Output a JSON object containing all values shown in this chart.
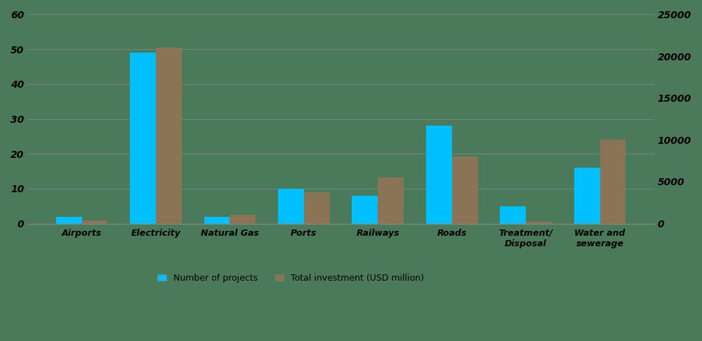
{
  "categories": [
    "Airports",
    "Electricity",
    "Natural Gas",
    "Ports",
    "Railways",
    "Roads",
    "Treatment/\nDisposal",
    "Water and\nsewerage"
  ],
  "num_projects": [
    2,
    49,
    2,
    10,
    8,
    28,
    5,
    16
  ],
  "total_investment": [
    400,
    21000,
    1100,
    3700,
    5500,
    8000,
    200,
    10000
  ],
  "bar_color_projects": "#00BFFF",
  "bar_color_investment": "#8B7355",
  "background_color": "#4A7A5A",
  "tick_color": "black",
  "left_ylim": [
    0,
    60
  ],
  "right_ylim": [
    0,
    25000
  ],
  "left_yticks": [
    0,
    10,
    20,
    30,
    40,
    50,
    60
  ],
  "right_yticks": [
    0,
    5000,
    10000,
    15000,
    20000,
    25000
  ],
  "legend_label_projects": "Number of projects",
  "legend_label_investment": "Total investment (USD million)",
  "bar_width": 0.35,
  "grid_color": "#888888",
  "spine_color": "#888888"
}
